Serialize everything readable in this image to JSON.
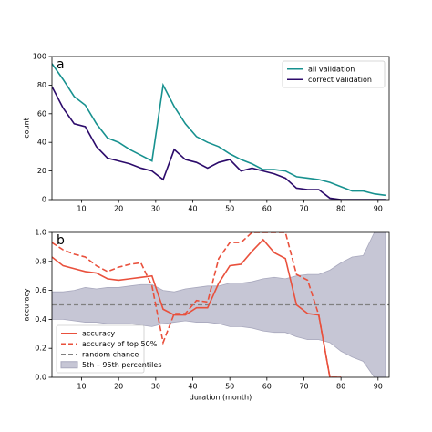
{
  "chart_data": [
    {
      "type": "line",
      "panel_label": "a",
      "y_label": "count",
      "x": [
        2,
        5,
        8,
        11,
        14,
        17,
        20,
        23,
        26,
        29,
        32,
        35,
        38,
        41,
        44,
        47,
        50,
        53,
        56,
        59,
        62,
        65,
        68,
        71,
        74,
        77,
        80,
        83,
        86,
        89,
        92
      ],
      "xlim": [
        2,
        93
      ],
      "xticks": [
        10,
        20,
        30,
        40,
        50,
        60,
        70,
        80,
        90
      ],
      "ylim": [
        0,
        100
      ],
      "yticks": [
        0,
        20,
        40,
        60,
        80,
        100
      ],
      "legend": "upper right",
      "series": [
        {
          "name": "all validation",
          "color": "#17918f",
          "values": [
            95,
            84,
            72,
            66,
            53,
            43,
            40,
            35,
            31,
            27,
            80,
            65,
            53,
            44,
            40,
            37,
            32,
            28,
            25,
            21,
            21,
            20,
            16,
            15,
            14,
            12,
            9,
            6,
            6,
            4,
            3
          ]
        },
        {
          "name": "correct validation",
          "color": "#2c0b6b",
          "values": [
            79,
            64,
            53,
            51,
            37,
            29,
            27,
            25,
            22,
            20,
            14,
            35,
            28,
            26,
            22,
            26,
            28,
            20,
            22,
            20,
            18,
            15,
            8,
            7,
            7,
            1,
            0,
            0,
            0,
            0,
            0
          ]
        }
      ]
    },
    {
      "type": "line",
      "panel_label": "b",
      "y_label": "accuracy",
      "x_label": "duration (month)",
      "x": [
        2,
        5,
        8,
        11,
        14,
        17,
        20,
        23,
        26,
        29,
        32,
        35,
        38,
        41,
        44,
        47,
        50,
        53,
        56,
        59,
        62,
        65,
        68,
        71,
        74,
        77,
        80,
        83,
        86,
        89,
        92
      ],
      "xlim": [
        2,
        93
      ],
      "xticks": [
        10,
        20,
        30,
        40,
        50,
        60,
        70,
        80,
        90
      ],
      "ylim": [
        0,
        1
      ],
      "yticks": [
        {
          "value": 0,
          "label": "0.0"
        },
        {
          "value": 0.2,
          "label": "0.2"
        },
        {
          "value": 0.4,
          "label": "0.4"
        },
        {
          "value": 0.6,
          "label": "0.6"
        },
        {
          "value": 0.8,
          "label": "0.8"
        },
        {
          "value": 1,
          "label": "1.0"
        }
      ],
      "legend": "lower left",
      "series": [
        {
          "name": "accuracy",
          "color": "#e9503c",
          "dash": false,
          "values": [
            0.83,
            0.77,
            0.75,
            0.73,
            0.72,
            0.68,
            0.67,
            0.68,
            0.69,
            0.7,
            0.47,
            0.43,
            0.43,
            0.48,
            0.48,
            0.65,
            0.77,
            0.78,
            0.87,
            0.95,
            0.86,
            0.82,
            0.5,
            0.44,
            0.43,
            0,
            0,
            null,
            null,
            null,
            null
          ]
        },
        {
          "name": "accuracy of top 50%",
          "color": "#e9503c",
          "dash": true,
          "values": [
            0.93,
            0.88,
            0.85,
            0.83,
            0.77,
            0.73,
            0.76,
            0.78,
            0.79,
            0.63,
            0.24,
            0.44,
            0.44,
            0.53,
            0.52,
            0.82,
            0.93,
            0.93,
            1.0,
            1.0,
            1.0,
            1.0,
            0.71,
            0.67,
            0.43,
            0,
            0,
            null,
            null,
            null,
            null
          ]
        }
      ],
      "hlines": [
        {
          "name": "random chance",
          "color": "#808080",
          "value": 0.5
        }
      ],
      "bands": [
        {
          "name": "5th – 95th percentiles",
          "color": "#c6c6d5",
          "upper": [
            0.59,
            0.59,
            0.6,
            0.62,
            0.61,
            0.62,
            0.62,
            0.63,
            0.64,
            0.64,
            0.6,
            0.59,
            0.61,
            0.62,
            0.63,
            0.63,
            0.65,
            0.65,
            0.66,
            0.68,
            0.69,
            0.68,
            0.7,
            0.71,
            0.71,
            0.74,
            0.79,
            0.83,
            0.84,
            1.0,
            1.0
          ],
          "lower": [
            0.4,
            0.4,
            0.39,
            0.38,
            0.38,
            0.37,
            0.37,
            0.37,
            0.36,
            0.35,
            0.37,
            0.38,
            0.39,
            0.38,
            0.38,
            0.37,
            0.35,
            0.35,
            0.34,
            0.32,
            0.31,
            0.31,
            0.28,
            0.26,
            0.26,
            0.24,
            0.18,
            0.14,
            0.11,
            0.0,
            0.0
          ]
        }
      ]
    }
  ]
}
